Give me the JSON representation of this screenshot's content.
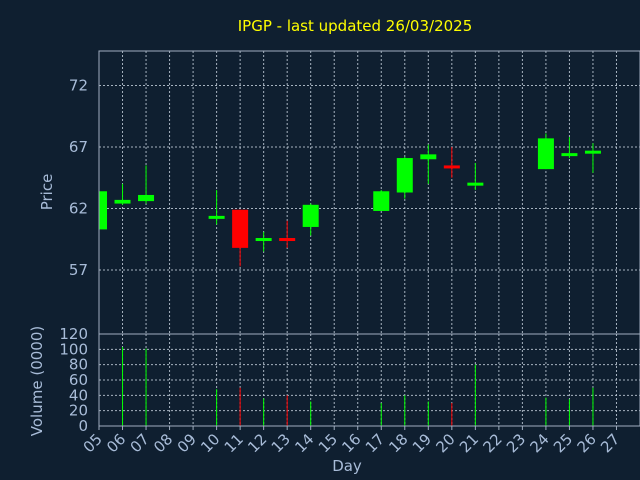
{
  "chart_data": {
    "type": "candlestick",
    "title": "IPGP - last updated 26/03/2025",
    "colors": {
      "up": "#00ff00",
      "down": "#ff0000",
      "background": "#0f1f30",
      "text": "#a8bcd8",
      "title": "#ffff00"
    },
    "price_panel": {
      "ylabel": "Price",
      "ylim": [
        51.8,
        74.8
      ],
      "yticks": [
        57,
        62,
        67,
        72
      ],
      "grid": true
    },
    "volume_panel": {
      "ylabel": "Volume (0000)",
      "ylim": [
        0,
        120
      ],
      "yticks": [
        0,
        20,
        40,
        60,
        80,
        100,
        120
      ],
      "grid": true
    },
    "xlabel": "Day",
    "x_ticks": [
      "05",
      "06",
      "07",
      "08",
      "09",
      "10",
      "11",
      "12",
      "13",
      "14",
      "15",
      "16",
      "17",
      "18",
      "19",
      "20",
      "21",
      "22",
      "23",
      "24",
      "25",
      "26",
      "27"
    ],
    "candles": [
      {
        "day": "05",
        "open": 60.3,
        "close": 63.4,
        "high": 63.4,
        "low": 60.3,
        "volume": 0
      },
      {
        "day": "06",
        "open": 62.4,
        "close": 62.7,
        "high": 64.0,
        "low": 62.3,
        "volume": 103
      },
      {
        "day": "07",
        "open": 62.6,
        "close": 63.1,
        "high": 65.5,
        "low": 62.4,
        "volume": 101
      },
      {
        "day": "10",
        "open": 61.2,
        "close": 61.4,
        "high": 63.5,
        "low": 60.7,
        "volume": 48
      },
      {
        "day": "11",
        "open": 61.9,
        "close": 58.8,
        "high": 61.9,
        "low": 57.3,
        "volume": 50
      },
      {
        "day": "12",
        "open": 59.4,
        "close": 59.6,
        "high": 60.1,
        "low": 58.5,
        "volume": 36
      },
      {
        "day": "13",
        "open": 59.6,
        "close": 59.4,
        "high": 61.0,
        "low": 58.8,
        "volume": 40
      },
      {
        "day": "14",
        "open": 60.5,
        "close": 62.3,
        "high": 62.4,
        "low": 59.8,
        "volume": 32
      },
      {
        "day": "17",
        "open": 61.8,
        "close": 63.4,
        "high": 63.5,
        "low": 61.8,
        "volume": 30
      },
      {
        "day": "18",
        "open": 63.3,
        "close": 66.1,
        "high": 66.2,
        "low": 62.8,
        "volume": 40
      },
      {
        "day": "19",
        "open": 66.0,
        "close": 66.4,
        "high": 67.2,
        "low": 64.0,
        "volume": 32
      },
      {
        "day": "20",
        "open": 65.5,
        "close": 65.3,
        "high": 67.0,
        "low": 64.5,
        "volume": 30
      },
      {
        "day": "21",
        "open": 64.0,
        "close": 64.1,
        "high": 65.7,
        "low": 63.5,
        "volume": 80
      },
      {
        "day": "24",
        "open": 65.2,
        "close": 67.7,
        "high": 68.1,
        "low": 65.2,
        "volume": 37
      },
      {
        "day": "25",
        "open": 66.3,
        "close": 66.5,
        "high": 67.8,
        "low": 66.1,
        "volume": 35
      },
      {
        "day": "26",
        "open": 66.5,
        "close": 66.7,
        "high": 67.3,
        "low": 64.9,
        "volume": 50
      }
    ]
  }
}
